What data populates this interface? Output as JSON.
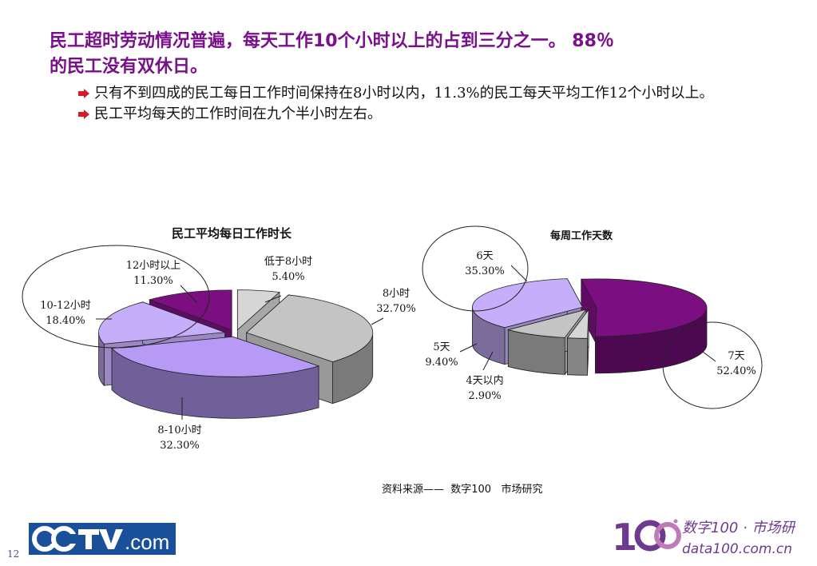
{
  "headline": {
    "line1": "民工超时劳动情况普遍，每天工作10个小时以上的占到三分之一。 88％",
    "line2": "的民工没有双休日。"
  },
  "bullets": [
    "只有不到四成的民工每日工作时间保持在8小时以内，11.3%的民工每天平均工作12个小时以上。",
    "民工平均每天的工作时间在九个半小时左右。"
  ],
  "chart_data": [
    {
      "type": "pie",
      "title": "民工平均每日工作时长",
      "slices": [
        {
          "label": "低于8小时",
          "value": 5.4,
          "value_label": "5.40%",
          "color": "#d6d6d6"
        },
        {
          "label": "8小时",
          "value": 32.7,
          "value_label": "32.70%",
          "color": "#c4c4c4"
        },
        {
          "label": "8-10小时",
          "value": 32.3,
          "value_label": "32.30%",
          "color": "#b69af6"
        },
        {
          "label": "10-12小时",
          "value": 18.4,
          "value_label": "18.40%",
          "color": "#c6aefa"
        },
        {
          "label": "12小时以上",
          "value": 11.3,
          "value_label": "11.30%",
          "color": "#7b0f82"
        }
      ]
    },
    {
      "type": "pie",
      "title": "每周工作天数",
      "slices": [
        {
          "label": "7天",
          "value": 52.4,
          "value_label": "52.40%",
          "color": "#7b0f82"
        },
        {
          "label": "4天以内",
          "value": 2.9,
          "value_label": "2.90%",
          "color": "#d6d6d6"
        },
        {
          "label": "5天",
          "value": 9.4,
          "value_label": "9.40%",
          "color": "#c4c4c4"
        },
        {
          "label": "6天",
          "value": 35.3,
          "value_label": "35.30%",
          "color": "#c6aefa"
        }
      ]
    }
  ],
  "source": "资料来源——  数字100   市场研究",
  "page_number": "12",
  "logos": {
    "cctv_text": ".com",
    "data100_cn": "数字100 · 市场研究",
    "data100_url": "data100.com.cn"
  }
}
